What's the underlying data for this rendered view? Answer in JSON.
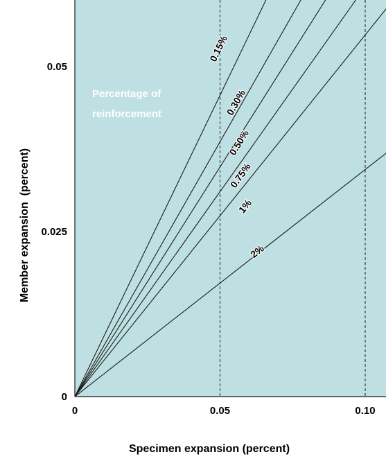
{
  "chart_data": {
    "type": "line",
    "title": "",
    "xlabel": "Specimen expansion (percent)",
    "ylabel": "Member expansion  (percent)",
    "xlim": [
      0,
      0.11
    ],
    "ylim": [
      0,
      0.058
    ],
    "x_ticks": [
      {
        "value": 0,
        "label": "0"
      },
      {
        "value": 0.05,
        "label": "0.05"
      },
      {
        "value": 0.1,
        "label": "0.10"
      }
    ],
    "y_ticks": [
      {
        "value": 0,
        "label": "0"
      },
      {
        "value": 0.025,
        "label": "0.025"
      },
      {
        "value": 0.05,
        "label": "0.05"
      }
    ],
    "vertical_reference_lines": [
      0.05,
      0.1
    ],
    "annotation": {
      "lines": [
        "Percentage of",
        "reinforcement"
      ]
    },
    "series": [
      {
        "name": "0.15%",
        "slope": 0.913,
        "label_x": 0.0505,
        "label_y": 0.0525
      },
      {
        "name": "0.30%",
        "slope": 0.772,
        "label_x": 0.0565,
        "label_y": 0.0443
      },
      {
        "name": "0.50%",
        "slope": 0.696,
        "label_x": 0.0575,
        "label_y": 0.0382
      },
      {
        "name": "0.75%",
        "slope": 0.621,
        "label_x": 0.058,
        "label_y": 0.0332
      },
      {
        "name": "1%",
        "slope": 0.548,
        "label_x": 0.0595,
        "label_y": 0.0285
      },
      {
        "name": "2%",
        "slope": 0.344,
        "label_x": 0.0635,
        "label_y": 0.0216
      }
    ],
    "colors": {
      "plot_background": "#bfe0e2",
      "line": "#1a1a1a"
    }
  }
}
